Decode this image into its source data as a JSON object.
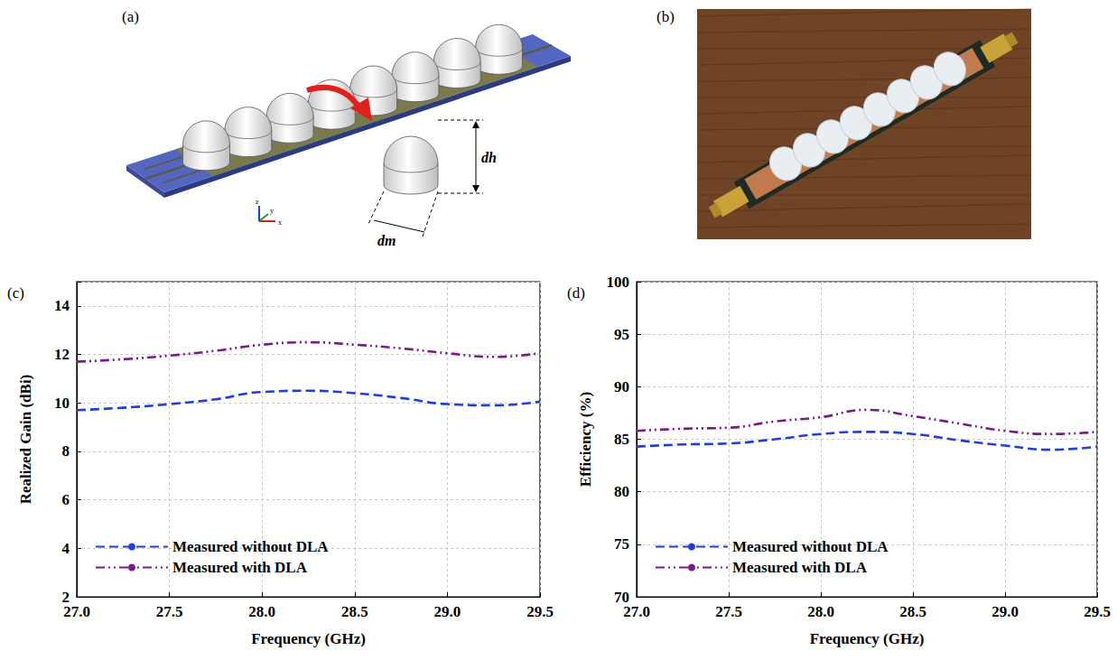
{
  "chart_data": [
    {
      "type": "line",
      "annotations": [
        "(c)"
      ],
      "x_label": "Frequency (GHz)",
      "y_label": "Realized Gain (dBi)",
      "x": [
        27.0,
        27.25,
        27.5,
        27.75,
        28.0,
        28.25,
        28.5,
        28.75,
        29.0,
        29.25,
        29.5
      ],
      "series": [
        {
          "name": "Measured without DLA",
          "color": "#1f3fdc",
          "line_style": "dashed",
          "values": [
            9.7,
            9.8,
            9.95,
            10.15,
            10.45,
            10.5,
            10.4,
            10.2,
            9.95,
            9.9,
            10.05
          ]
        },
        {
          "name": "Measured with DLA",
          "color": "#7a1a8a",
          "line_style": "dashdotdot",
          "values": [
            11.7,
            11.8,
            11.95,
            12.15,
            12.4,
            12.5,
            12.4,
            12.25,
            12.05,
            11.9,
            12.05
          ]
        }
      ],
      "xlim": [
        27.0,
        29.5
      ],
      "xticks": [
        {
          "value": 27.0,
          "label": "27.0"
        },
        {
          "value": 27.5,
          "label": "27.5"
        },
        {
          "value": 28.0,
          "label": "28.0"
        },
        {
          "value": 28.5,
          "label": "28.5"
        },
        {
          "value": 29.0,
          "label": "29.0"
        },
        {
          "value": 29.5,
          "label": "29.5"
        }
      ],
      "ylim": [
        2,
        15
      ],
      "yticks": [
        2,
        4,
        6,
        8,
        10,
        12,
        14
      ],
      "grid": true,
      "legend": "lower left"
    },
    {
      "type": "line",
      "annotations": [
        "(d)"
      ],
      "x_label": "Frequency (GHz)",
      "y_label": "Efficiency (%)",
      "x": [
        27.0,
        27.25,
        27.5,
        27.75,
        28.0,
        28.25,
        28.5,
        28.75,
        29.0,
        29.25,
        29.5
      ],
      "series": [
        {
          "name": "Measured without DLA",
          "color": "#1f3fdc",
          "line_style": "dashed",
          "values": [
            84.3,
            84.5,
            84.6,
            85.0,
            85.5,
            85.7,
            85.5,
            84.9,
            84.4,
            84.0,
            84.3
          ]
        },
        {
          "name": "Measured with DLA",
          "color": "#7a1a8a",
          "line_style": "dashdotdot",
          "values": [
            85.8,
            86.0,
            86.1,
            86.7,
            87.1,
            87.8,
            87.2,
            86.5,
            85.8,
            85.5,
            85.7
          ]
        }
      ],
      "xlim": [
        27.0,
        29.5
      ],
      "xticks": [
        {
          "value": 27.0,
          "label": "27.0"
        },
        {
          "value": 27.5,
          "label": "27.5"
        },
        {
          "value": 28.0,
          "label": "28.0"
        },
        {
          "value": 28.5,
          "label": "28.5"
        },
        {
          "value": 29.0,
          "label": "29.0"
        },
        {
          "value": 29.5,
          "label": "29.5"
        }
      ],
      "ylim": [
        70,
        100
      ],
      "yticks": [
        70,
        75,
        80,
        85,
        90,
        95,
        100
      ],
      "grid": true,
      "legend": "lower left"
    }
  ],
  "figure": {
    "panels": [
      {
        "label": "(a)",
        "dimensions": [
          "dh",
          "dm"
        ],
        "axes": [
          "x",
          "y",
          "z"
        ]
      },
      {
        "label": "(b)"
      }
    ]
  }
}
